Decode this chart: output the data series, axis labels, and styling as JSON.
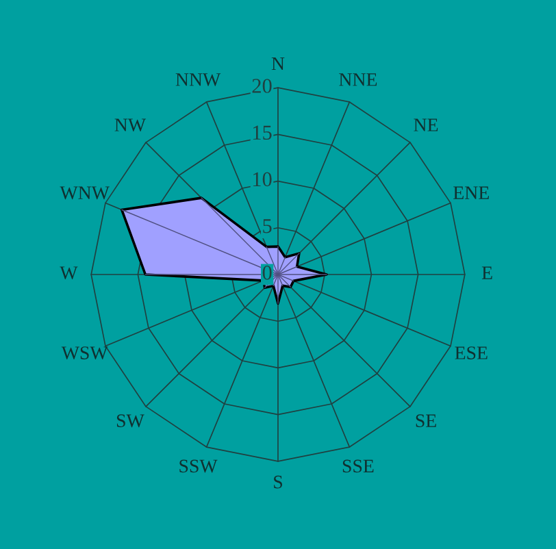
{
  "chart_data": {
    "type": "radar",
    "categories": [
      "N",
      "NNE",
      "NE",
      "ENE",
      "E",
      "ESE",
      "SE",
      "SSE",
      "S",
      "SSW",
      "SW",
      "WSW",
      "W",
      "WNW",
      "NW",
      "NNW"
    ],
    "series": [
      {
        "color": "#a0a0ff",
        "values": [
          3.0,
          2.0,
          3.2,
          2.2,
          5.2,
          1.8,
          1.9,
          1.3,
          3.1,
          1.3,
          2.0,
          1.7,
          14.2,
          18.1,
          11.6,
          3.2
        ]
      }
    ],
    "ylim": [
      0,
      20
    ],
    "yticks": [
      0,
      5,
      10,
      15,
      20
    ],
    "grid": true
  }
}
